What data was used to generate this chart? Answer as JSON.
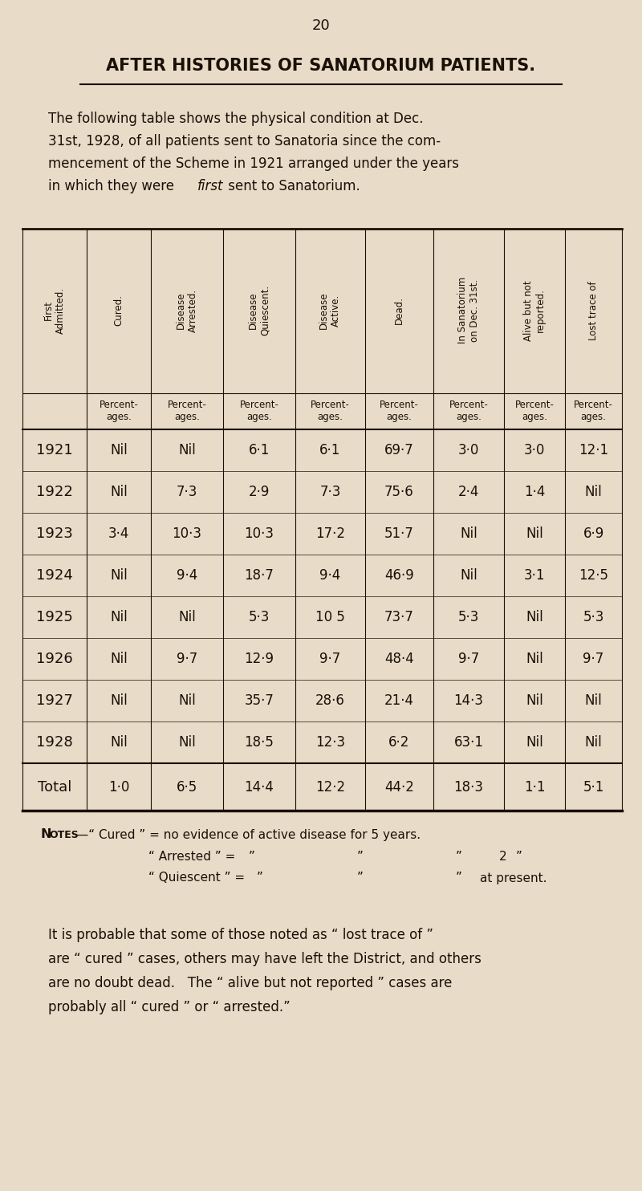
{
  "page_number": "20",
  "title": "AFTER HISTORIES OF SANATORIUM PATIENTS.",
  "intro_lines": [
    "The following table shows the physical condition at Dec.",
    "31st, 1928, of all patients sent to Sanatoria since the com-",
    "mencement of the Scheme in 1921 arranged under the years",
    "in which they were first sent to Sanatorium."
  ],
  "col_headers": [
    "First\nAdmitted.",
    "Cured.",
    "Disease\nArrested.",
    "Disease\nQuiescent.",
    "Disease\nActive.",
    "Dead.",
    "In Sanatorium\non Dec. 31st.",
    "Alive but not\nreported.",
    "Lost trace of"
  ],
  "rows": [
    [
      "1921",
      "Nil",
      "Nil",
      "6·1",
      "6·1",
      "69·7",
      "3·0",
      "3·0",
      "12·1"
    ],
    [
      "1922",
      "Nil",
      "7·3",
      "2·9",
      "7·3",
      "75·6",
      "2·4",
      "1·4",
      "Nil"
    ],
    [
      "1923",
      "3·4",
      "10·3",
      "10·3",
      "17·2",
      "51·7",
      "Nil",
      "Nil",
      "6·9"
    ],
    [
      "1924",
      "Nil",
      "9·4",
      "18·7",
      "9·4",
      "46·9",
      "Nil",
      "3·1",
      "12·5"
    ],
    [
      "1925",
      "Nil",
      "Nil",
      "5·3",
      "10 5",
      "73·7",
      "5·3",
      "Nil",
      "5·3"
    ],
    [
      "1926",
      "Nil",
      "9·7",
      "12·9",
      "9·7",
      "48·4",
      "9·7",
      "Nil",
      "9·7"
    ],
    [
      "1927",
      "Nil",
      "Nil",
      "35·7",
      "28·6",
      "21·4",
      "14·3",
      "Nil",
      "Nil"
    ],
    [
      "1928",
      "Nil",
      "Nil",
      "18·5",
      "12·3",
      "6·2",
      "63·1",
      "Nil",
      "Nil"
    ]
  ],
  "total_row": [
    "Total",
    "1·0",
    "6·5",
    "14·4",
    "12·2",
    "44·2",
    "18·3",
    "1·1",
    "5·1"
  ],
  "bg_color": "#e8dcc8",
  "text_color": "#1a1008",
  "line_color": "#1a1008"
}
